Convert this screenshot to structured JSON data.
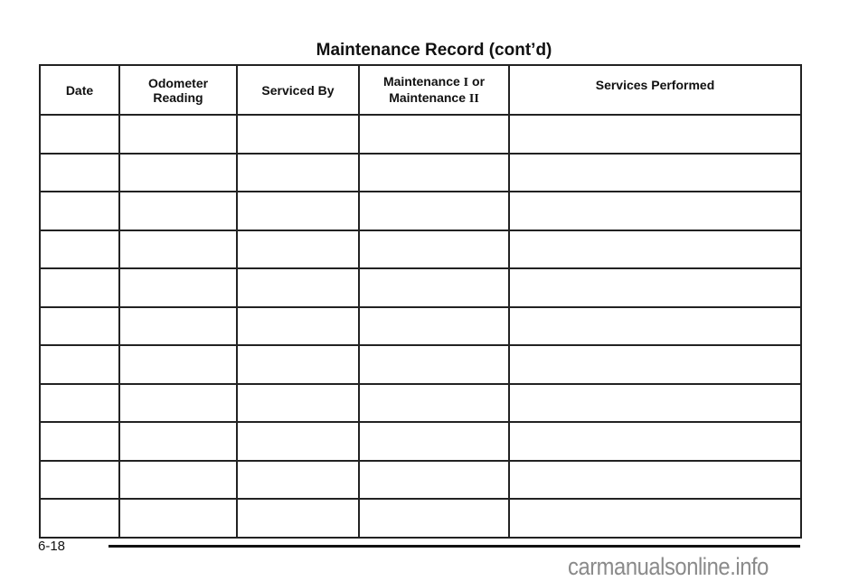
{
  "page": {
    "title": "Maintenance Record  (cont’d)",
    "page_number": "6-18",
    "watermark": "carmanualsonline.info"
  },
  "table": {
    "headers": {
      "date": "Date",
      "odometer_line1": "Odometer",
      "odometer_line2": "Reading",
      "serviced_by": "Serviced By",
      "maint_line1": "Maintenance",
      "maint_roman1": "I",
      "maint_or": "or",
      "maint_line2": "Maintenance",
      "maint_roman2": "II",
      "services": "Services Performed"
    },
    "rows": [
      [],
      [],
      [],
      [],
      [],
      [],
      [],
      [],
      [],
      [],
      []
    ]
  }
}
